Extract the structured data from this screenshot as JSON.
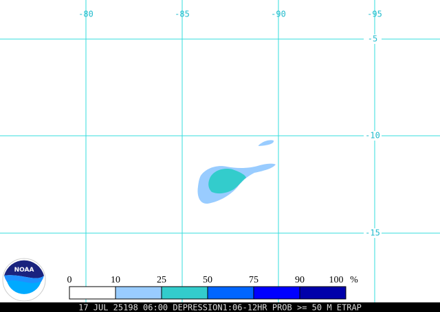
{
  "map": {
    "lon_labels": [
      "-80",
      "-85",
      "-90",
      "-95"
    ],
    "lat_labels": [
      "-5",
      "-10",
      "-15"
    ],
    "grid_color": "#33dddd"
  },
  "logo": {
    "text": "NOAA"
  },
  "colorbar": {
    "ticks": [
      "0",
      "10",
      "25",
      "50",
      "75",
      "90",
      "100"
    ],
    "unit": "%",
    "colors": [
      "#ffffff",
      "#99ccff",
      "#33cccc",
      "#0066ff",
      "#0000ff",
      "#0000aa"
    ]
  },
  "footer": {
    "text": "17 JUL 25198 06:00 DEPRESSION1:06-12HR PROB >= 50 M ETRAP"
  }
}
